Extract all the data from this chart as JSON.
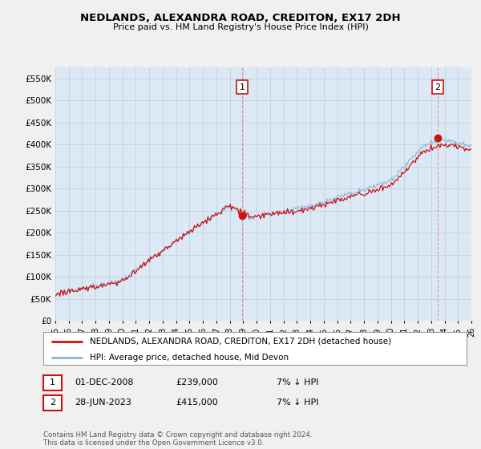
{
  "title": "NEDLANDS, ALEXANDRA ROAD, CREDITON, EX17 2DH",
  "subtitle": "Price paid vs. HM Land Registry's House Price Index (HPI)",
  "ylabel_ticks": [
    "£0",
    "£50K",
    "£100K",
    "£150K",
    "£200K",
    "£250K",
    "£300K",
    "£350K",
    "£400K",
    "£450K",
    "£500K",
    "£550K"
  ],
  "ytick_values": [
    0,
    50000,
    100000,
    150000,
    200000,
    250000,
    300000,
    350000,
    400000,
    450000,
    500000,
    550000
  ],
  "ylim": [
    0,
    575000
  ],
  "xlim_start": 1995.0,
  "xlim_end": 2026.0,
  "hpi_color": "#8ab4d4",
  "price_color": "#cc1111",
  "marker1_date": 2008.92,
  "marker1_price": 239000,
  "marker1_label": "1",
  "marker2_date": 2023.49,
  "marker2_price": 415000,
  "marker2_label": "2",
  "vline1_x": 2008.92,
  "vline2_x": 2023.49,
  "legend_line1": "NEDLANDS, ALEXANDRA ROAD, CREDITON, EX17 2DH (detached house)",
  "legend_line2": "HPI: Average price, detached house, Mid Devon",
  "annotation1": [
    "1",
    "01-DEC-2008",
    "£239,000",
    "7% ↓ HPI"
  ],
  "annotation2": [
    "2",
    "28-JUN-2023",
    "£415,000",
    "7% ↓ HPI"
  ],
  "footer": "Contains HM Land Registry data © Crown copyright and database right 2024.\nThis data is licensed under the Open Government Licence v3.0.",
  "background_color": "#f0f0f0",
  "plot_bg_color": "#dce9f5",
  "grid_color": "#b8cfe0"
}
